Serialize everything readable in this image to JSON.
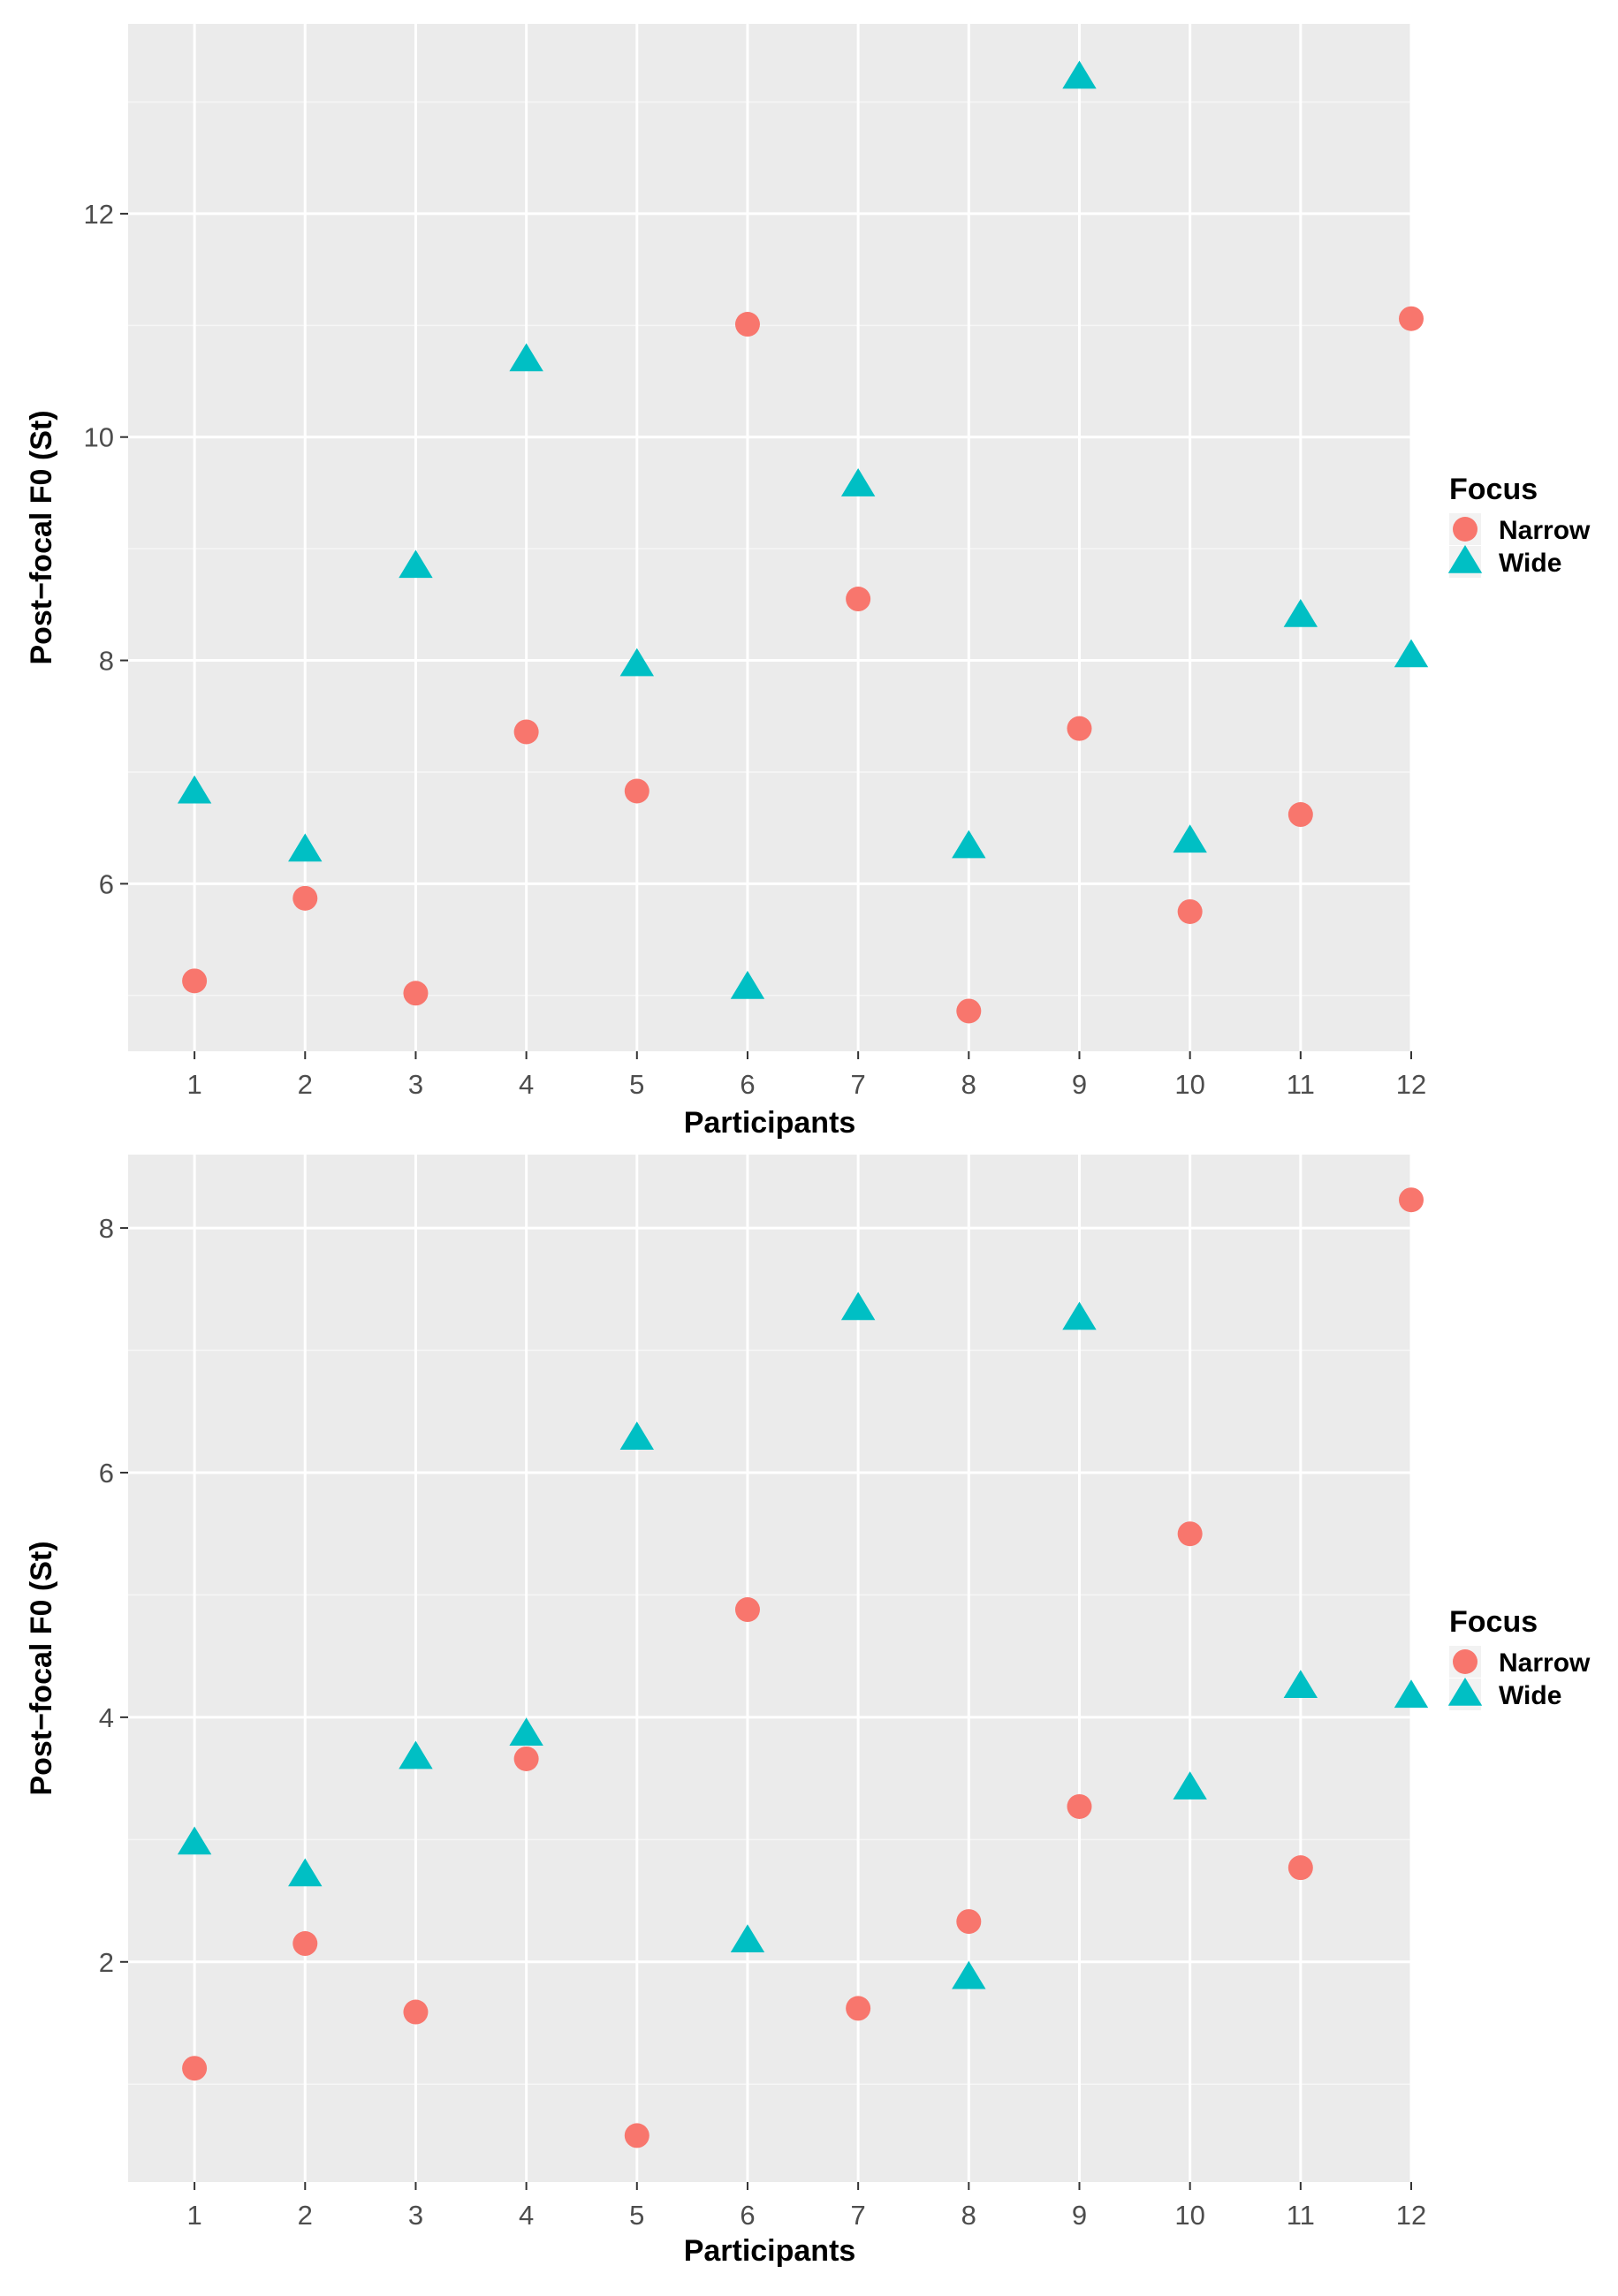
{
  "chart_data": [
    {
      "type": "scatter",
      "xlabel": "Participants",
      "ylabel": "Post−focal F0 (St)",
      "categories": [
        "1",
        "2",
        "3",
        "4",
        "5",
        "6",
        "7",
        "8",
        "9",
        "10",
        "11",
        "12"
      ],
      "ylim": [
        4.5,
        13.7
      ],
      "yticks": [
        "6",
        "8",
        "10",
        "12"
      ],
      "grid": true,
      "legend": {
        "title": "Focus",
        "position": "right"
      },
      "series": [
        {
          "name": "Narrow",
          "shape": "circle",
          "color": "#F8766D",
          "values": [
            5.13,
            5.87,
            5.02,
            7.36,
            6.83,
            11.01,
            8.55,
            4.86,
            7.39,
            5.75,
            6.62,
            11.06
          ]
        },
        {
          "name": "Wide",
          "shape": "triangle",
          "color": "#00BFC4",
          "values": [
            6.82,
            6.3,
            8.84,
            10.69,
            7.96,
            5.07,
            9.57,
            6.33,
            13.22,
            6.38,
            8.4,
            8.04
          ]
        }
      ]
    },
    {
      "type": "scatter",
      "xlabel": "Participants",
      "ylabel": "Post−focal F0 (St)",
      "categories": [
        "1",
        "2",
        "3",
        "4",
        "5",
        "6",
        "7",
        "8",
        "9",
        "10",
        "11",
        "12"
      ],
      "ylim": [
        0.2,
        8.6
      ],
      "yticks": [
        "2",
        "4",
        "6",
        "8"
      ],
      "grid": true,
      "legend": {
        "title": "Focus",
        "position": "right"
      },
      "series": [
        {
          "name": "Narrow",
          "shape": "circle",
          "color": "#F8766D",
          "values": [
            1.13,
            2.15,
            1.59,
            3.66,
            0.58,
            4.88,
            1.62,
            2.33,
            3.27,
            5.5,
            2.77,
            8.23
          ]
        },
        {
          "name": "Wide",
          "shape": "triangle",
          "color": "#00BFC4",
          "values": [
            2.97,
            2.71,
            3.67,
            3.86,
            6.28,
            2.17,
            7.34,
            1.87,
            7.26,
            3.42,
            4.25,
            4.17
          ]
        }
      ]
    }
  ]
}
